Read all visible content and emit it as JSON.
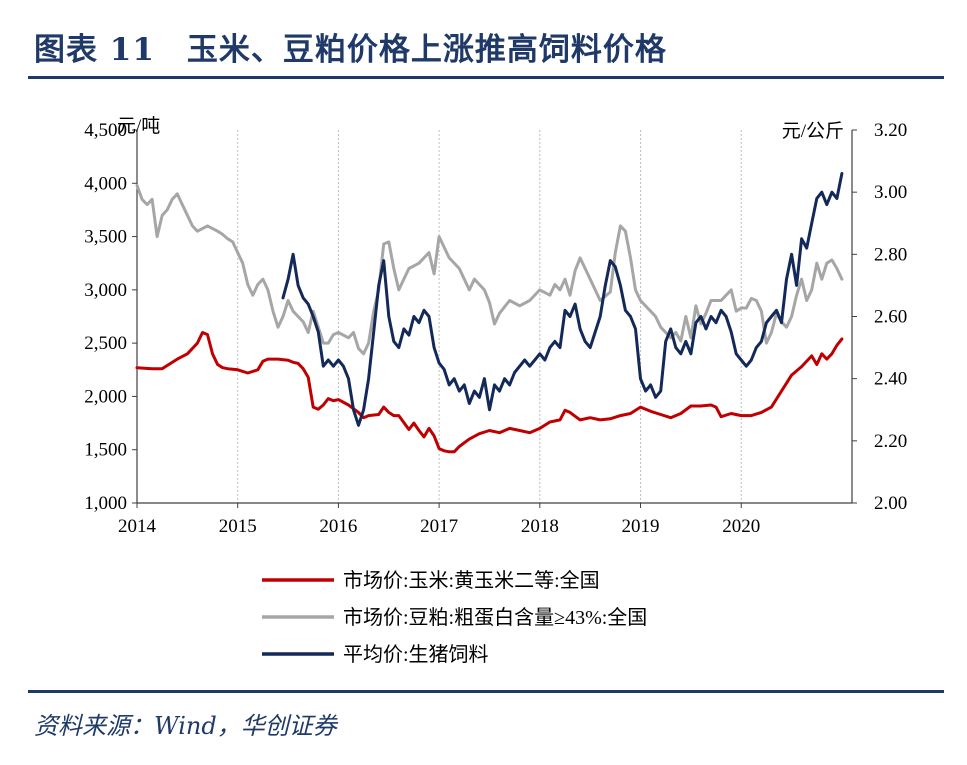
{
  "header": {
    "title": "图表 11　玉米、豆粕价格上涨推高饲料价格"
  },
  "footer": {
    "source": "资料来源：Wind，华创证券"
  },
  "chart_data": {
    "type": "line",
    "title": "玉米、豆粕价格上涨推高饲料价格",
    "left_axis": {
      "unit": "元/吨",
      "ylim": [
        1000,
        4500
      ],
      "ticks": [
        1000,
        1500,
        2000,
        2500,
        3000,
        3500,
        4000,
        4500
      ],
      "tick_labels": [
        "1,000",
        "1,500",
        "2,000",
        "2,500",
        "3,000",
        "3,500",
        "4,000",
        "4,500"
      ]
    },
    "right_axis": {
      "unit": "元/公斤",
      "ylim": [
        2.0,
        3.2
      ],
      "ticks": [
        2.0,
        2.2,
        2.4,
        2.6,
        2.8,
        3.0,
        3.2
      ],
      "tick_labels": [
        "2.00",
        "2.20",
        "2.40",
        "2.60",
        "2.80",
        "3.00",
        "3.20"
      ]
    },
    "x_axis": {
      "xlim": [
        2014.0,
        2021.1
      ],
      "ticks": [
        2014,
        2015,
        2016,
        2017,
        2018,
        2019,
        2020
      ],
      "tick_labels": [
        "2014",
        "2015",
        "2016",
        "2017",
        "2018",
        "2019",
        "2020"
      ]
    },
    "legend": {
      "position": "bottom"
    },
    "series": [
      {
        "name": "市场价:玉米:黄玉米二等:全国",
        "axis": "left",
        "color": "#c00000",
        "x": [
          2014.0,
          2014.15,
          2014.25,
          2014.3,
          2014.4,
          2014.5,
          2014.6,
          2014.65,
          2014.7,
          2014.75,
          2014.8,
          2014.85,
          2014.9,
          2015.0,
          2015.1,
          2015.2,
          2015.25,
          2015.3,
          2015.4,
          2015.5,
          2015.55,
          2015.6,
          2015.65,
          2015.7,
          2015.75,
          2015.8,
          2015.85,
          2015.9,
          2015.95,
          2016.0,
          2016.1,
          2016.2,
          2016.25,
          2016.3,
          2016.4,
          2016.45,
          2016.5,
          2016.55,
          2016.6,
          2016.7,
          2016.75,
          2016.8,
          2016.85,
          2016.9,
          2016.95,
          2017.0,
          2017.05,
          2017.1,
          2017.15,
          2017.2,
          2017.3,
          2017.4,
          2017.5,
          2017.6,
          2017.7,
          2017.8,
          2017.9,
          2018.0,
          2018.1,
          2018.2,
          2018.25,
          2018.3,
          2018.4,
          2018.5,
          2018.6,
          2018.7,
          2018.8,
          2018.9,
          2019.0,
          2019.1,
          2019.2,
          2019.3,
          2019.4,
          2019.5,
          2019.6,
          2019.7,
          2019.75,
          2019.8,
          2019.9,
          2020.0,
          2020.1,
          2020.2,
          2020.3,
          2020.4,
          2020.5,
          2020.6,
          2020.7,
          2020.75,
          2020.8,
          2020.85,
          2020.9,
          2020.95,
          2021.0
        ],
        "values": [
          2270,
          2260,
          2260,
          2290,
          2350,
          2400,
          2500,
          2600,
          2580,
          2400,
          2300,
          2270,
          2260,
          2250,
          2220,
          2250,
          2330,
          2350,
          2350,
          2340,
          2320,
          2310,
          2260,
          2180,
          1900,
          1880,
          1920,
          1980,
          1960,
          1970,
          1920,
          1850,
          1800,
          1820,
          1830,
          1900,
          1850,
          1820,
          1820,
          1690,
          1750,
          1680,
          1620,
          1700,
          1630,
          1510,
          1490,
          1480,
          1480,
          1530,
          1600,
          1650,
          1680,
          1660,
          1700,
          1680,
          1660,
          1700,
          1760,
          1780,
          1870,
          1850,
          1780,
          1800,
          1780,
          1790,
          1820,
          1840,
          1900,
          1860,
          1830,
          1800,
          1840,
          1910,
          1910,
          1920,
          1900,
          1810,
          1840,
          1820,
          1820,
          1850,
          1900,
          2050,
          2200,
          2280,
          2380,
          2300,
          2400,
          2350,
          2400,
          2480,
          2540
        ]
      },
      {
        "name": "市场价:豆粕:粗蛋白含量≥43%:全国",
        "axis": "left",
        "color": "#a6a6a6",
        "x": [
          2014.0,
          2014.05,
          2014.1,
          2014.15,
          2014.2,
          2014.25,
          2014.3,
          2014.35,
          2014.4,
          2014.45,
          2014.5,
          2014.55,
          2014.6,
          2014.7,
          2014.8,
          2014.85,
          2014.9,
          2014.95,
          2015.0,
          2015.05,
          2015.1,
          2015.15,
          2015.2,
          2015.25,
          2015.3,
          2015.35,
          2015.4,
          2015.45,
          2015.5,
          2015.55,
          2015.6,
          2015.65,
          2015.7,
          2015.75,
          2015.8,
          2015.85,
          2015.9,
          2015.95,
          2016.0,
          2016.1,
          2016.15,
          2016.2,
          2016.25,
          2016.3,
          2016.35,
          2016.4,
          2016.45,
          2016.5,
          2016.55,
          2016.6,
          2016.7,
          2016.8,
          2016.85,
          2016.9,
          2016.95,
          2017.0,
          2017.1,
          2017.2,
          2017.3,
          2017.35,
          2017.4,
          2017.45,
          2017.5,
          2017.55,
          2017.6,
          2017.7,
          2017.8,
          2017.9,
          2018.0,
          2018.1,
          2018.15,
          2018.2,
          2018.25,
          2018.3,
          2018.35,
          2018.4,
          2018.5,
          2018.6,
          2018.7,
          2018.75,
          2018.8,
          2018.85,
          2018.9,
          2018.95,
          2019.0,
          2019.1,
          2019.15,
          2019.2,
          2019.3,
          2019.35,
          2019.4,
          2019.45,
          2019.5,
          2019.55,
          2019.6,
          2019.65,
          2019.7,
          2019.8,
          2019.85,
          2019.9,
          2019.95,
          2020.0,
          2020.05,
          2020.1,
          2020.15,
          2020.2,
          2020.25,
          2020.3,
          2020.35,
          2020.4,
          2020.45,
          2020.5,
          2020.55,
          2020.6,
          2020.65,
          2020.7,
          2020.75,
          2020.8,
          2020.85,
          2020.9,
          2020.95,
          2021.0
        ],
        "values": [
          3980,
          3850,
          3800,
          3850,
          3500,
          3700,
          3750,
          3850,
          3900,
          3800,
          3700,
          3600,
          3550,
          3600,
          3550,
          3520,
          3480,
          3450,
          3350,
          3250,
          3050,
          2950,
          3050,
          3100,
          3000,
          2800,
          2650,
          2750,
          2900,
          2800,
          2750,
          2700,
          2600,
          2800,
          2650,
          2500,
          2500,
          2580,
          2600,
          2550,
          2600,
          2450,
          2400,
          2500,
          2800,
          3000,
          3430,
          3450,
          3200,
          3000,
          3200,
          3250,
          3300,
          3350,
          3150,
          3500,
          3300,
          3200,
          3000,
          3100,
          3050,
          3000,
          2880,
          2680,
          2780,
          2900,
          2850,
          2900,
          3000,
          2950,
          3050,
          3000,
          3100,
          2950,
          3180,
          3300,
          3100,
          2900,
          2980,
          3350,
          3600,
          3550,
          3300,
          3000,
          2900,
          2800,
          2750,
          2650,
          2550,
          2600,
          2520,
          2750,
          2550,
          2850,
          2680,
          2780,
          2900,
          2900,
          2950,
          3000,
          2800,
          2830,
          2830,
          2920,
          2900,
          2800,
          2500,
          2600,
          2780,
          2700,
          2650,
          2750,
          2950,
          3100,
          2900,
          3000,
          3250,
          3100,
          3250,
          3280,
          3200,
          3100
        ]
      },
      {
        "name": "平均价:生猪饲料",
        "axis": "right",
        "color": "#13295a",
        "x": [
          2015.45,
          2015.5,
          2015.55,
          2015.6,
          2015.65,
          2015.7,
          2015.75,
          2015.8,
          2015.85,
          2015.9,
          2015.95,
          2016.0,
          2016.05,
          2016.1,
          2016.15,
          2016.2,
          2016.25,
          2016.3,
          2016.35,
          2016.4,
          2016.45,
          2016.5,
          2016.55,
          2016.6,
          2016.65,
          2016.7,
          2016.75,
          2016.8,
          2016.85,
          2016.9,
          2016.95,
          2017.0,
          2017.05,
          2017.1,
          2017.15,
          2017.2,
          2017.25,
          2017.3,
          2017.35,
          2017.4,
          2017.45,
          2017.5,
          2017.55,
          2017.6,
          2017.65,
          2017.7,
          2017.75,
          2017.8,
          2017.85,
          2017.9,
          2017.95,
          2018.0,
          2018.05,
          2018.1,
          2018.15,
          2018.2,
          2018.25,
          2018.3,
          2018.35,
          2018.4,
          2018.45,
          2018.5,
          2018.55,
          2018.6,
          2018.65,
          2018.7,
          2018.75,
          2018.8,
          2018.85,
          2018.9,
          2018.95,
          2019.0,
          2019.05,
          2019.1,
          2019.15,
          2019.2,
          2019.25,
          2019.3,
          2019.35,
          2019.4,
          2019.45,
          2019.5,
          2019.55,
          2019.6,
          2019.65,
          2019.7,
          2019.75,
          2019.8,
          2019.85,
          2019.9,
          2019.95,
          2020.0,
          2020.05,
          2020.1,
          2020.15,
          2020.2,
          2020.25,
          2020.3,
          2020.35,
          2020.4,
          2020.45,
          2020.5,
          2020.55,
          2020.6,
          2020.65,
          2020.7,
          2020.75,
          2020.8,
          2020.85,
          2020.9,
          2020.95,
          2021.0
        ],
        "values": [
          2.66,
          2.72,
          2.8,
          2.7,
          2.66,
          2.64,
          2.6,
          2.55,
          2.44,
          2.46,
          2.44,
          2.46,
          2.44,
          2.4,
          2.3,
          2.25,
          2.3,
          2.4,
          2.55,
          2.7,
          2.78,
          2.6,
          2.52,
          2.5,
          2.56,
          2.54,
          2.6,
          2.58,
          2.62,
          2.6,
          2.5,
          2.45,
          2.43,
          2.38,
          2.4,
          2.36,
          2.38,
          2.32,
          2.36,
          2.34,
          2.4,
          2.3,
          2.38,
          2.36,
          2.4,
          2.38,
          2.42,
          2.44,
          2.46,
          2.44,
          2.46,
          2.48,
          2.46,
          2.5,
          2.52,
          2.5,
          2.62,
          2.6,
          2.64,
          2.56,
          2.52,
          2.5,
          2.55,
          2.6,
          2.7,
          2.78,
          2.76,
          2.7,
          2.62,
          2.6,
          2.56,
          2.4,
          2.36,
          2.38,
          2.34,
          2.36,
          2.52,
          2.56,
          2.5,
          2.48,
          2.52,
          2.48,
          2.58,
          2.6,
          2.56,
          2.6,
          2.58,
          2.62,
          2.6,
          2.55,
          2.48,
          2.46,
          2.44,
          2.46,
          2.5,
          2.52,
          2.58,
          2.6,
          2.62,
          2.58,
          2.72,
          2.8,
          2.7,
          2.85,
          2.82,
          2.9,
          2.98,
          3.0,
          2.96,
          3.0,
          2.98,
          3.06
        ]
      }
    ]
  }
}
